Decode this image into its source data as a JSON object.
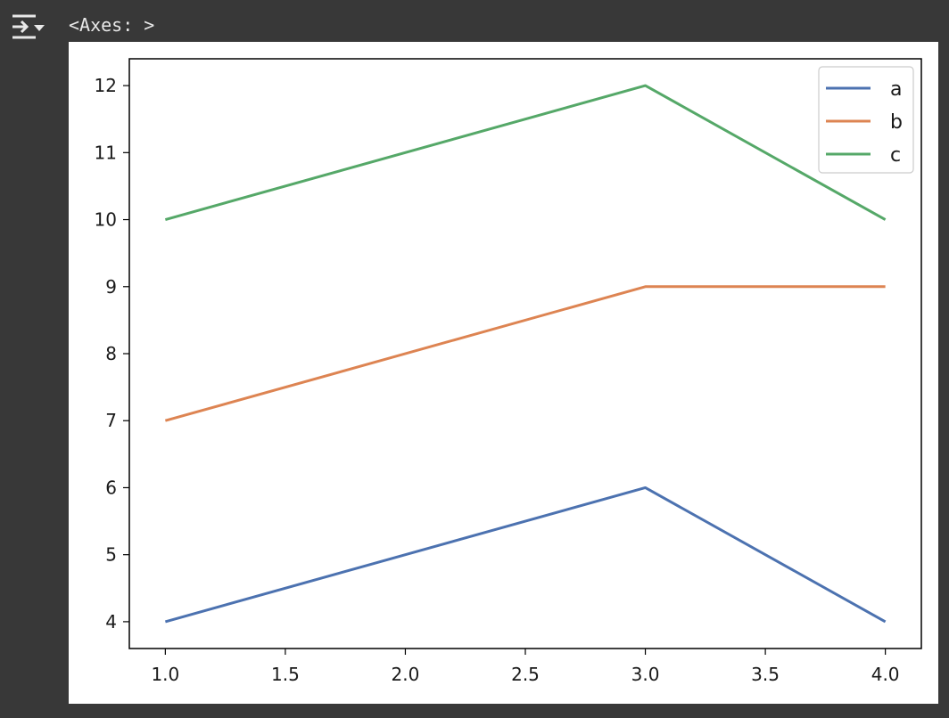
{
  "output": {
    "text": "<Axes: >",
    "toggle_icon": "output-toggle-icon"
  },
  "colors": {
    "background": "#383838",
    "figure_bg": "#ffffff",
    "series_a": "#4c72b0",
    "series_b": "#dd8452",
    "series_c": "#55a868"
  },
  "chart_data": {
    "type": "line",
    "x": [
      1.0,
      3.0,
      4.0
    ],
    "series": [
      {
        "name": "a",
        "values": [
          4,
          6,
          4
        ],
        "color": "#4c72b0"
      },
      {
        "name": "b",
        "values": [
          7,
          9,
          9
        ],
        "color": "#dd8452"
      },
      {
        "name": "c",
        "values": [
          10,
          12,
          10
        ],
        "color": "#55a868"
      }
    ],
    "xlim": [
      0.85,
      4.15
    ],
    "ylim": [
      3.6,
      12.4
    ],
    "x_ticks": [
      1.0,
      1.5,
      2.0,
      2.5,
      3.0,
      3.5,
      4.0
    ],
    "x_tick_labels": [
      "1.0",
      "1.5",
      "2.0",
      "2.5",
      "3.0",
      "3.5",
      "4.0"
    ],
    "y_ticks": [
      4,
      5,
      6,
      7,
      8,
      9,
      10,
      11,
      12
    ],
    "y_tick_labels": [
      "4",
      "5",
      "6",
      "7",
      "8",
      "9",
      "10",
      "11",
      "12"
    ],
    "title": "",
    "xlabel": "",
    "ylabel": "",
    "grid": false,
    "legend_position": "top-right"
  }
}
